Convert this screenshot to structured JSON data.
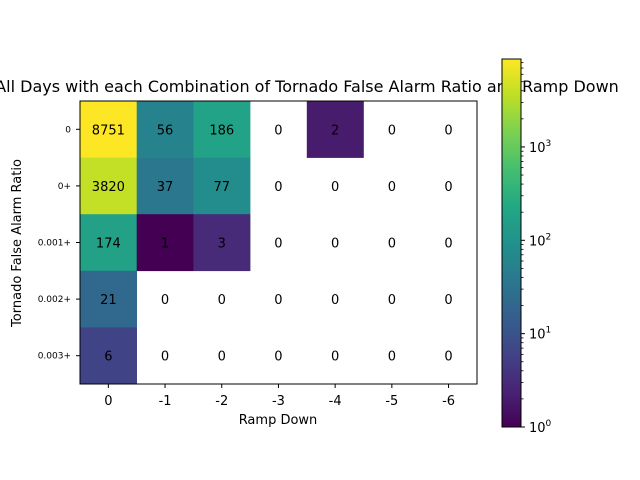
{
  "chart_data": {
    "type": "heatmap",
    "title": "All Days with each Combination of Tornado False Alarm Ratio and Ramp Down",
    "xlabel": "Ramp Down",
    "ylabel": "Tornado False Alarm Ratio",
    "x_categories": [
      "0",
      "-1",
      "-2",
      "-3",
      "-4",
      "-5",
      "-6"
    ],
    "y_categories": [
      "0",
      "0+",
      "0.001+",
      "0.002+",
      "0.003+"
    ],
    "values": [
      [
        8751,
        56,
        186,
        0,
        2,
        0,
        0
      ],
      [
        3820,
        37,
        77,
        0,
        0,
        0,
        0
      ],
      [
        174,
        1,
        3,
        0,
        0,
        0,
        0
      ],
      [
        21,
        0,
        0,
        0,
        0,
        0,
        0
      ],
      [
        6,
        0,
        0,
        0,
        0,
        0,
        0
      ]
    ],
    "zero_cells_blank": true,
    "color_scale": {
      "colormap": "viridis",
      "scale": "log",
      "range": [
        1,
        8751
      ],
      "ticks": [
        {
          "value": 1,
          "base": "10",
          "exp": "0"
        },
        {
          "value": 10,
          "base": "10",
          "exp": "1"
        },
        {
          "value": 100,
          "base": "10",
          "exp": "2"
        },
        {
          "value": 1000,
          "base": "10",
          "exp": "3"
        }
      ]
    },
    "grid": false
  }
}
